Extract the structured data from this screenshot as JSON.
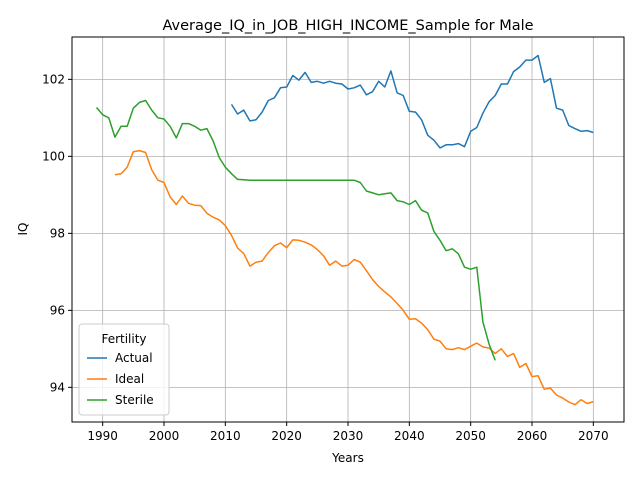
{
  "chart_data": {
    "type": "line",
    "title": "Average_IQ_in_JOB_HIGH_INCOME_Sample for Male",
    "xlabel": "Years",
    "ylabel": "IQ",
    "xlim": [
      1985,
      2075
    ],
    "ylim": [
      93.1,
      103.1
    ],
    "xticks": [
      1990,
      2000,
      2010,
      2020,
      2030,
      2040,
      2050,
      2060,
      2070
    ],
    "yticks": [
      94,
      96,
      98,
      100,
      102
    ],
    "grid": true,
    "legend": {
      "title": "Fertility",
      "placement": "lower-left"
    },
    "series": [
      {
        "name": "Actual",
        "color": "#1f77b4",
        "x": [
          2011,
          2012,
          2013,
          2014,
          2015,
          2016,
          2017,
          2018,
          2019,
          2020,
          2021,
          2022,
          2023,
          2024,
          2025,
          2026,
          2027,
          2028,
          2029,
          2030,
          2031,
          2032,
          2033,
          2034,
          2035,
          2036,
          2037,
          2038,
          2039,
          2040,
          2041,
          2042,
          2043,
          2044,
          2045,
          2046,
          2047,
          2048,
          2049,
          2050,
          2051,
          2052,
          2053,
          2054,
          2055,
          2056,
          2057,
          2058,
          2059,
          2060,
          2061,
          2062,
          2063,
          2064,
          2065,
          2066,
          2067,
          2068,
          2069,
          2070
        ],
        "y": [
          101.35,
          101.1,
          101.2,
          100.92,
          100.95,
          101.15,
          101.45,
          101.52,
          101.78,
          101.8,
          102.1,
          101.98,
          102.18,
          101.92,
          101.95,
          101.9,
          101.95,
          101.9,
          101.88,
          101.75,
          101.78,
          101.85,
          101.6,
          101.68,
          101.95,
          101.8,
          102.22,
          101.65,
          101.58,
          101.17,
          101.15,
          100.95,
          100.55,
          100.42,
          100.22,
          100.3,
          100.3,
          100.33,
          100.25,
          100.65,
          100.75,
          101.12,
          101.42,
          101.58,
          101.88,
          101.88,
          102.2,
          102.32,
          102.5,
          102.5,
          102.62,
          101.92,
          102.02,
          101.25,
          101.2,
          100.8,
          100.72,
          100.65,
          100.67,
          100.62
        ]
      },
      {
        "name": "Ideal",
        "color": "#ff7f0e",
        "x": [
          1992,
          1993,
          1994,
          1995,
          1996,
          1997,
          1998,
          1999,
          2000,
          2001,
          2002,
          2003,
          2004,
          2005,
          2006,
          2007,
          2008,
          2009,
          2010,
          2011,
          2012,
          2013,
          2014,
          2015,
          2016,
          2017,
          2018,
          2019,
          2020,
          2021,
          2022,
          2023,
          2024,
          2025,
          2026,
          2027,
          2028,
          2029,
          2030,
          2031,
          2032,
          2033,
          2034,
          2035,
          2036,
          2037,
          2038,
          2039,
          2040,
          2041,
          2042,
          2043,
          2044,
          2045,
          2046,
          2047,
          2048,
          2049,
          2050,
          2051,
          2052,
          2053,
          2054,
          2055,
          2056,
          2057,
          2058,
          2059,
          2060,
          2061,
          2062,
          2063,
          2064,
          2065,
          2066,
          2067,
          2068,
          2069,
          2070
        ],
        "y": [
          99.52,
          99.55,
          99.72,
          100.12,
          100.15,
          100.1,
          99.65,
          99.38,
          99.32,
          98.95,
          98.75,
          98.97,
          98.78,
          98.73,
          98.72,
          98.52,
          98.42,
          98.35,
          98.2,
          97.95,
          97.62,
          97.48,
          97.15,
          97.25,
          97.28,
          97.5,
          97.68,
          97.75,
          97.63,
          97.83,
          97.82,
          97.77,
          97.7,
          97.58,
          97.42,
          97.17,
          97.28,
          97.15,
          97.17,
          97.32,
          97.25,
          97.03,
          96.8,
          96.62,
          96.48,
          96.35,
          96.18,
          96.0,
          95.77,
          95.78,
          95.67,
          95.5,
          95.25,
          95.2,
          95.0,
          94.98,
          95.03,
          94.98,
          95.07,
          95.15,
          95.05,
          95.02,
          94.88,
          95.0,
          94.8,
          94.88,
          94.52,
          94.62,
          94.28,
          94.3,
          93.95,
          93.98,
          93.8,
          93.72,
          93.62,
          93.55,
          93.68,
          93.58,
          93.63
        ]
      },
      {
        "name": "Sterile",
        "color": "#2ca02c",
        "x": [
          1989,
          1990,
          1991,
          1992,
          1993,
          1994,
          1995,
          1996,
          1997,
          1998,
          1999,
          2000,
          2001,
          2002,
          2003,
          2004,
          2005,
          2006,
          2007,
          2008,
          2009,
          2010,
          2011,
          2012,
          2013,
          2014,
          2015,
          2016,
          2017,
          2018,
          2019,
          2020,
          2021,
          2022,
          2023,
          2024,
          2025,
          2026,
          2027,
          2028,
          2029,
          2030,
          2031,
          2032,
          2033,
          2034,
          2035,
          2036,
          2037,
          2038,
          2039,
          2040,
          2041,
          2042,
          2043,
          2044,
          2045,
          2046,
          2047,
          2048,
          2049,
          2050,
          2051,
          2052,
          2053,
          2054
        ],
        "y": [
          101.27,
          101.08,
          101.0,
          100.5,
          100.78,
          100.78,
          101.25,
          101.4,
          101.45,
          101.2,
          101.0,
          100.97,
          100.78,
          100.48,
          100.85,
          100.85,
          100.78,
          100.68,
          100.72,
          100.4,
          99.97,
          99.72,
          99.55,
          99.4,
          99.39,
          99.38,
          99.38,
          99.38,
          99.38,
          99.38,
          99.38,
          99.38,
          99.38,
          99.38,
          99.38,
          99.38,
          99.38,
          99.38,
          99.38,
          99.38,
          99.38,
          99.38,
          99.38,
          99.32,
          99.1,
          99.05,
          99.0,
          99.03,
          99.05,
          98.85,
          98.82,
          98.75,
          98.85,
          98.6,
          98.53,
          98.05,
          97.82,
          97.55,
          97.6,
          97.47,
          97.12,
          97.07,
          97.12,
          95.7,
          95.12,
          94.7
        ]
      }
    ]
  }
}
